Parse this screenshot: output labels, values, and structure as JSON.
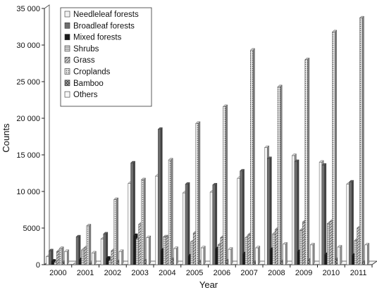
{
  "chart_data": {
    "type": "bar",
    "style": "3d-grouped",
    "title": "",
    "xlabel": "Year",
    "ylabel": "Counts",
    "ylim": [
      0,
      35000
    ],
    "yticks": [
      0,
      5000,
      10000,
      15000,
      20000,
      25000,
      30000,
      35000
    ],
    "ytick_labels": [
      "0",
      "5000",
      "10 000",
      "15 000",
      "20 000",
      "25 000",
      "30 000",
      "35 000"
    ],
    "grid": false,
    "legend_position": "top-left",
    "categories": [
      "2000",
      "2001",
      "2002",
      "2003",
      "2004",
      "2005",
      "2006",
      "2007",
      "2008",
      "2009",
      "2010",
      "2011"
    ],
    "series": [
      {
        "name": "Needleleaf forests",
        "color": "#f2f2f2",
        "pattern": "plain",
        "values": [
          1100,
          100,
          3500,
          11100,
          12100,
          9800,
          9900,
          11800,
          16000,
          14900,
          14000,
          11000
        ]
      },
      {
        "name": "Broadleaf forests",
        "color": "#6e6e6e",
        "pattern": "plain",
        "values": [
          1900,
          3800,
          4200,
          13900,
          18500,
          11000,
          10900,
          12800,
          14500,
          14100,
          13600,
          11300
        ]
      },
      {
        "name": "Mixed forests",
        "color": "#1a1a1a",
        "pattern": "plain",
        "values": [
          500,
          700,
          900,
          4000,
          2000,
          1200,
          2200,
          1500,
          2100,
          1800,
          1400,
          1300
        ]
      },
      {
        "name": "Shrubs",
        "color": "#cfcfcf",
        "pattern": "hlines",
        "values": [
          300,
          2000,
          500,
          3500,
          3800,
          3100,
          2700,
          3700,
          4200,
          4700,
          5600,
          3300
        ]
      },
      {
        "name": "Grass",
        "color": "#bdbdbd",
        "pattern": "diag",
        "values": [
          1800,
          2300,
          1900,
          5500,
          3800,
          4300,
          3700,
          4100,
          4800,
          5800,
          5900,
          5000
        ]
      },
      {
        "name": "Croplands",
        "color": "#dcdcdc",
        "pattern": "dots",
        "values": [
          2200,
          5300,
          8900,
          11600,
          14300,
          19300,
          21600,
          29300,
          24300,
          28000,
          31800,
          33700
        ]
      },
      {
        "name": "Bamboo",
        "color": "#8a8a8a",
        "pattern": "cross",
        "values": [
          300,
          100,
          400,
          500,
          700,
          400,
          500,
          300,
          400,
          600,
          700,
          300
        ]
      },
      {
        "name": "Others",
        "color": "#f7f7f7",
        "pattern": "plain",
        "values": [
          1800,
          1600,
          1800,
          3700,
          2200,
          2300,
          2100,
          2300,
          2800,
          2700,
          2400,
          2700
        ]
      }
    ]
  }
}
